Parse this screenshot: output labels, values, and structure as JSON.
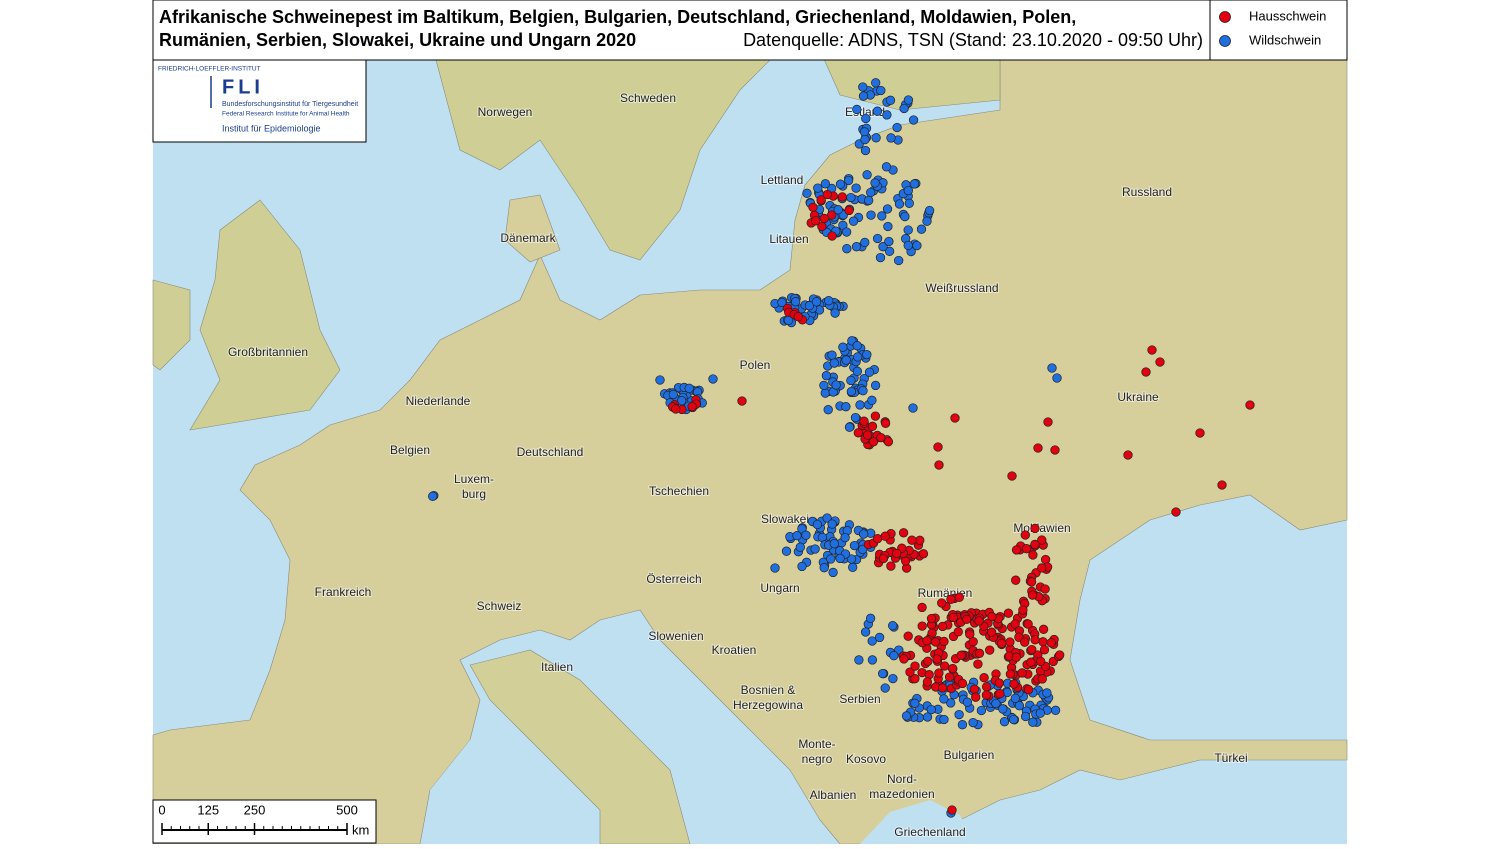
{
  "title": {
    "line1": "Afrikanische Schweinepest im Baltikum, Belgien, Bulgarien, Deutschland, Griechenland, Moldawien, Polen,",
    "line2": "Rumänien, Serbien, Slowakei, Ukraine und Ungarn 2020",
    "source": "Datenquelle: ADNS, TSN (Stand: 23.10.2020 - 09:50 Uhr)"
  },
  "legend": [
    {
      "label": "Hausschwein",
      "color": "#e3000f"
    },
    {
      "label": "Wildschwein",
      "color": "#1f6fe0"
    }
  ],
  "logo": {
    "institute_top": "FRIEDRICH-LOEFFLER-INSTITUT",
    "name": "FLI",
    "german": "Bundesforschungsinstitut für Tiergesundheit",
    "english": "Federal Research Institute for Animal Health",
    "department": "Institut für Epidemiologie"
  },
  "labels": [
    {
      "lines": [
        "Norwegen"
      ]
    },
    {
      "lines": [
        "Schweden"
      ]
    },
    {
      "lines": [
        "Estland"
      ]
    },
    {
      "lines": [
        "Lettland"
      ]
    },
    {
      "lines": [
        "Russland"
      ]
    },
    {
      "lines": [
        "Dänemark"
      ]
    },
    {
      "lines": [
        "Litauen"
      ]
    },
    {
      "lines": [
        "Weißrussland"
      ]
    },
    {
      "lines": [
        "Großbritannien"
      ]
    },
    {
      "lines": [
        "Polen"
      ]
    },
    {
      "lines": [
        "Niederlande"
      ]
    },
    {
      "lines": [
        "Ukraine"
      ]
    },
    {
      "lines": [
        "Belgien"
      ]
    },
    {
      "lines": [
        "Deutschland"
      ]
    },
    {
      "lines": [
        "Luxem-",
        "burg"
      ]
    },
    {
      "lines": [
        "Tschechien"
      ]
    },
    {
      "lines": [
        "Slowakei"
      ]
    },
    {
      "lines": [
        "Moldawien"
      ]
    },
    {
      "lines": [
        "Österreich"
      ]
    },
    {
      "lines": [
        "Ungarn"
      ]
    },
    {
      "lines": [
        "Frankreich"
      ]
    },
    {
      "lines": [
        "Rumänien"
      ]
    },
    {
      "lines": [
        "Schweiz"
      ]
    },
    {
      "lines": [
        "Slowenien"
      ]
    },
    {
      "lines": [
        "Kroatien"
      ]
    },
    {
      "lines": [
        "Italien"
      ]
    },
    {
      "lines": [
        "Bosnien &",
        "Herzegowina"
      ]
    },
    {
      "lines": [
        "Serbien"
      ]
    },
    {
      "lines": [
        "Monte-",
        "negro"
      ]
    },
    {
      "lines": [
        "Kosovo"
      ]
    },
    {
      "lines": [
        "Bulgarien"
      ]
    },
    {
      "lines": [
        "Türkei"
      ]
    },
    {
      "lines": [
        "Nord-",
        "mazedonien"
      ]
    },
    {
      "lines": [
        "Albanien"
      ]
    },
    {
      "lines": [
        "Griechenland"
      ]
    }
  ],
  "scale": {
    "ticks": [
      0,
      125,
      250,
      500
    ],
    "unit": "km"
  }
}
